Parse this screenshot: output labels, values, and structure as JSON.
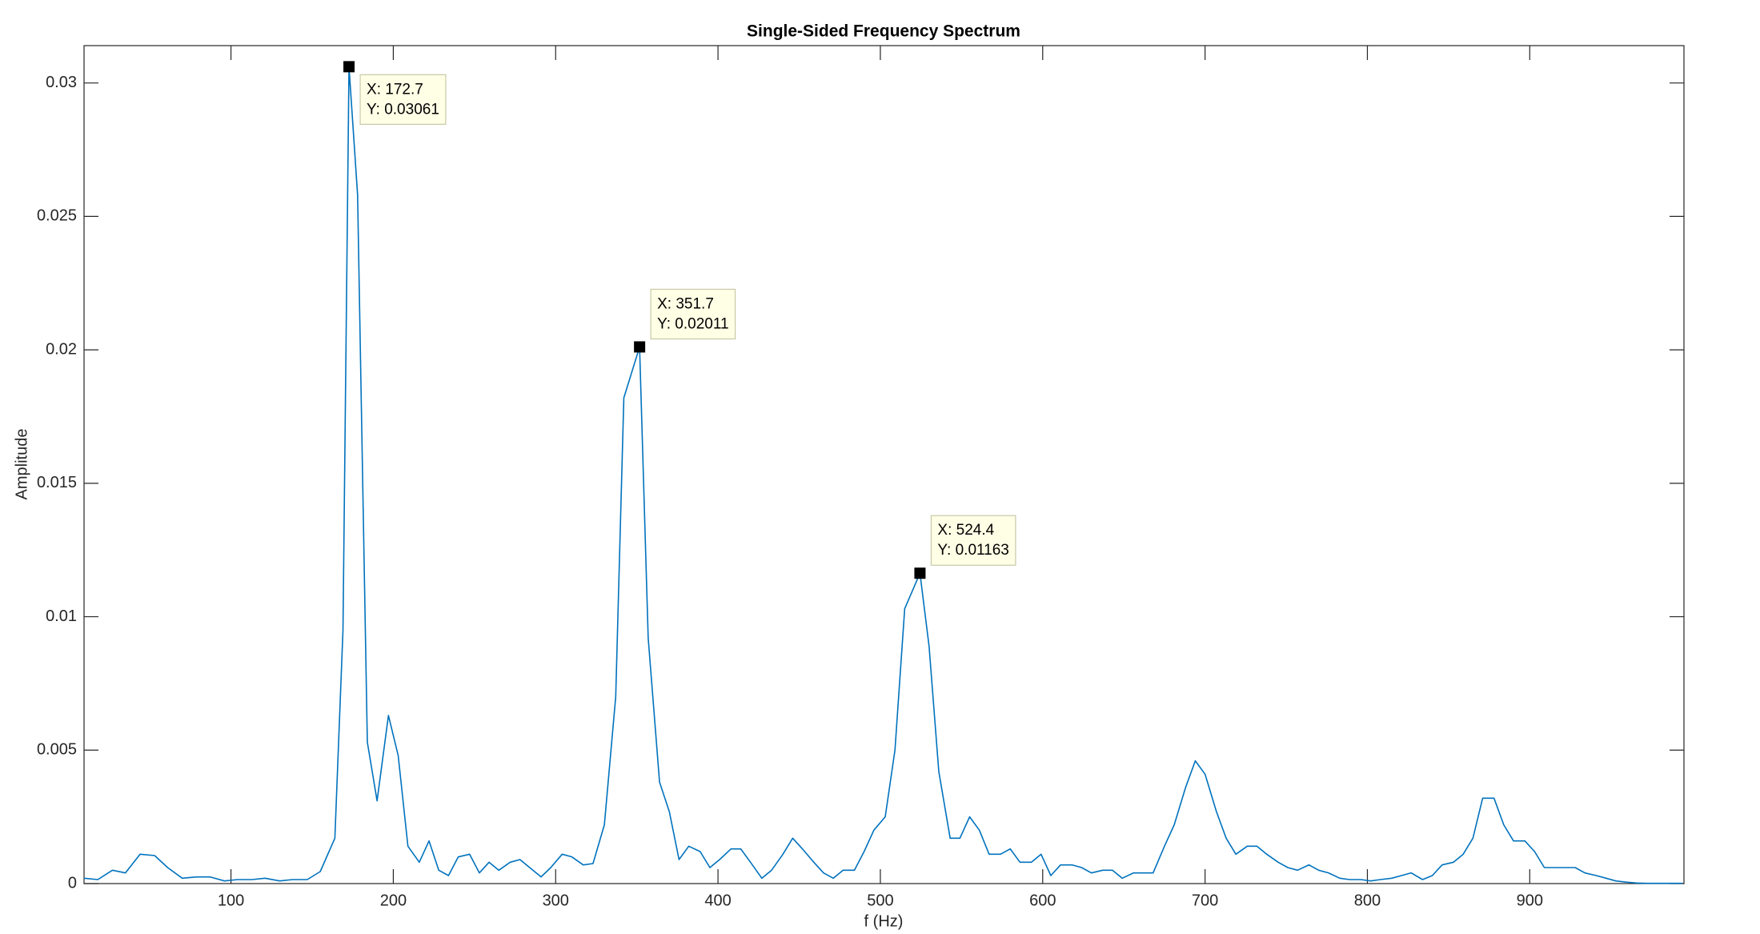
{
  "chart_data": {
    "type": "line",
    "title": "Single-Sided Frequency Spectrum",
    "x_label": "f (Hz)",
    "y_label": "Amplitude",
    "xlim": [
      9.5,
      995
    ],
    "ylim": [
      0,
      0.0314
    ],
    "xticks": [
      100,
      200,
      300,
      400,
      500,
      600,
      700,
      800,
      900
    ],
    "yticks": [
      0,
      0.005,
      0.01,
      0.015,
      0.02,
      0.025,
      0.03
    ],
    "x": [
      9.5,
      18,
      27,
      35,
      44,
      53,
      61,
      70,
      79,
      87,
      96,
      104,
      113,
      121,
      130,
      138,
      147,
      155,
      164,
      169,
      172.7,
      178,
      184,
      190,
      197,
      203,
      209,
      216,
      222,
      228,
      234,
      240,
      247,
      253,
      259,
      265,
      272,
      278,
      284,
      291,
      297,
      304,
      310,
      317,
      323,
      330,
      337,
      342,
      351.7,
      357,
      364,
      370,
      376,
      382,
      389,
      395,
      401,
      408,
      414,
      420,
      427,
      433,
      440,
      446,
      452,
      459,
      465,
      471,
      477,
      484,
      490,
      496,
      503,
      509,
      515,
      524.4,
      530,
      536,
      543,
      549,
      555,
      561,
      567,
      574,
      580,
      586,
      593,
      599,
      605,
      611,
      618,
      624,
      630,
      637,
      643,
      649,
      656,
      662,
      668,
      675,
      681,
      688,
      694,
      700,
      707,
      713,
      719,
      726,
      732,
      738,
      745,
      751,
      757,
      764,
      770,
      776,
      783,
      789,
      796,
      802,
      808,
      815,
      821,
      827,
      834,
      840,
      846,
      853,
      859,
      865,
      871,
      878,
      884,
      890,
      897,
      903,
      909,
      916,
      922,
      928,
      934,
      941,
      947,
      953,
      960,
      966,
      972,
      979,
      985,
      994
    ],
    "series": [
      {
        "color": "#0072bd",
        "values": [
          0.0002,
          0.00015,
          0.0005,
          0.0004,
          0.0011,
          0.00105,
          0.0006,
          0.0002,
          0.00025,
          0.00025,
          0.0001,
          0.00015,
          0.00015,
          0.0002,
          0.0001,
          0.00015,
          0.00015,
          0.00045,
          0.0017,
          0.0095,
          0.03061,
          0.0258,
          0.0053,
          0.0031,
          0.0063,
          0.0048,
          0.0014,
          0.0008,
          0.0016,
          0.0005,
          0.0003,
          0.001,
          0.0011,
          0.0004,
          0.0008,
          0.0005,
          0.0008,
          0.0009,
          0.0006,
          0.00025,
          0.0006,
          0.0011,
          0.001,
          0.0007,
          0.00075,
          0.0022,
          0.007,
          0.0182,
          0.02011,
          0.0092,
          0.0038,
          0.0027,
          0.0009,
          0.0014,
          0.0012,
          0.0006,
          0.0009,
          0.0013,
          0.0013,
          0.0008,
          0.0002,
          0.0005,
          0.0011,
          0.0017,
          0.0013,
          0.0008,
          0.0004,
          0.0002,
          0.0005,
          0.0005,
          0.0012,
          0.002,
          0.0025,
          0.005,
          0.0103,
          0.01163,
          0.0089,
          0.0042,
          0.0017,
          0.0017,
          0.0025,
          0.002,
          0.0011,
          0.0011,
          0.0013,
          0.0008,
          0.0008,
          0.0011,
          0.0003,
          0.0007,
          0.0007,
          0.0006,
          0.0004,
          0.0005,
          0.0005,
          0.0002,
          0.0004,
          0.0004,
          0.0004,
          0.0014,
          0.0022,
          0.0036,
          0.0046,
          0.0041,
          0.0027,
          0.0017,
          0.0011,
          0.0014,
          0.0014,
          0.0011,
          0.0008,
          0.0006,
          0.0005,
          0.0007,
          0.0005,
          0.0004,
          0.0002,
          0.00015,
          0.00015,
          0.0001,
          0.00015,
          0.0002,
          0.0003,
          0.0004,
          0.00015,
          0.0003,
          0.0007,
          0.0008,
          0.0011,
          0.0017,
          0.0032,
          0.0032,
          0.0022,
          0.0016,
          0.0016,
          0.0012,
          0.0006,
          0.0006,
          0.0006,
          0.0006,
          0.0004,
          0.0003,
          0.0002,
          0.0001,
          5e-05,
          2e-05,
          1e-05,
          1e-05,
          1e-05,
          1e-05
        ]
      }
    ],
    "datatips": [
      {
        "x": 172.7,
        "y": 0.03061,
        "x_label": "X: 172.7",
        "y_label": "Y: 0.03061"
      },
      {
        "x": 351.7,
        "y": 0.02011,
        "x_label": "X: 351.7",
        "y_label": "Y: 0.02011"
      },
      {
        "x": 524.4,
        "y": 0.01163,
        "x_label": "X: 524.4",
        "y_label": "Y: 0.01163"
      }
    ]
  }
}
